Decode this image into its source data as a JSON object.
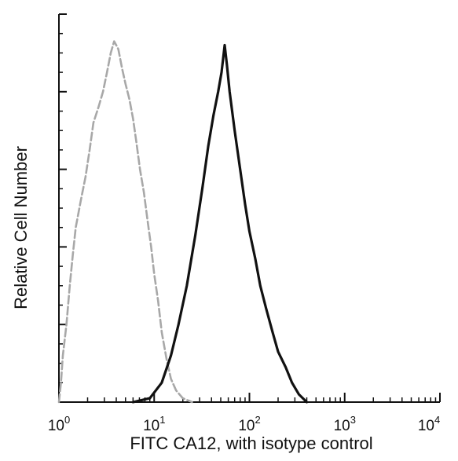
{
  "chart_data": {
    "type": "line",
    "xscale": "log",
    "xlim": [
      1,
      10000
    ],
    "ylim": [
      0,
      100
    ],
    "grid": false,
    "legend": "none",
    "xlabel": "FITC  CA12,  with isotype control",
    "ylabel": "Relative Cell Number",
    "xtick_labels": [
      {
        "base": "10",
        "exp": "0",
        "value": 1
      },
      {
        "base": "10",
        "exp": "1",
        "value": 10
      },
      {
        "base": "10",
        "exp": "2",
        "value": 100
      },
      {
        "base": "10",
        "exp": "3",
        "value": 1000
      },
      {
        "base": "10",
        "exp": "4",
        "value": 10000
      }
    ],
    "series": [
      {
        "color": "#a8a8a8",
        "style": "dashed",
        "points": [
          [
            1.0,
            0
          ],
          [
            1.05,
            5
          ],
          [
            1.1,
            12
          ],
          [
            1.2,
            20
          ],
          [
            1.3,
            30
          ],
          [
            1.4,
            38
          ],
          [
            1.5,
            45
          ],
          [
            1.7,
            52
          ],
          [
            1.9,
            58
          ],
          [
            2.1,
            65
          ],
          [
            2.3,
            72
          ],
          [
            2.6,
            76
          ],
          [
            2.9,
            80
          ],
          [
            3.2,
            85
          ],
          [
            3.5,
            90
          ],
          [
            3.8,
            93
          ],
          [
            4.2,
            91
          ],
          [
            4.6,
            86
          ],
          [
            5.0,
            82
          ],
          [
            5.5,
            78
          ],
          [
            6.0,
            73
          ],
          [
            6.5,
            67
          ],
          [
            7.1,
            60
          ],
          [
            7.8,
            54
          ],
          [
            8.5,
            47
          ],
          [
            9.3,
            40
          ],
          [
            10.0,
            33
          ],
          [
            11.0,
            26
          ],
          [
            12.0,
            18
          ],
          [
            13.5,
            11
          ],
          [
            15.0,
            6
          ],
          [
            17.0,
            3
          ],
          [
            20.0,
            1
          ],
          [
            25.0,
            0
          ]
        ]
      },
      {
        "color": "#111111",
        "style": "solid",
        "points": [
          [
            6.0,
            0
          ],
          [
            9.0,
            1
          ],
          [
            12.0,
            5
          ],
          [
            15.0,
            12
          ],
          [
            18.0,
            20
          ],
          [
            22.0,
            30
          ],
          [
            27.0,
            43
          ],
          [
            32.0,
            55
          ],
          [
            37.0,
            66
          ],
          [
            42.0,
            74
          ],
          [
            47.0,
            80
          ],
          [
            51.0,
            85
          ],
          [
            55.0,
            92
          ],
          [
            58.0,
            87
          ],
          [
            62.0,
            80
          ],
          [
            70.0,
            70
          ],
          [
            80.0,
            60
          ],
          [
            90.0,
            51
          ],
          [
            100.0,
            44
          ],
          [
            115.0,
            37
          ],
          [
            130.0,
            30
          ],
          [
            150.0,
            24
          ],
          [
            175.0,
            18
          ],
          [
            200.0,
            13
          ],
          [
            240.0,
            9
          ],
          [
            280.0,
            5
          ],
          [
            330.0,
            2
          ],
          [
            400.0,
            0
          ]
        ]
      }
    ]
  }
}
